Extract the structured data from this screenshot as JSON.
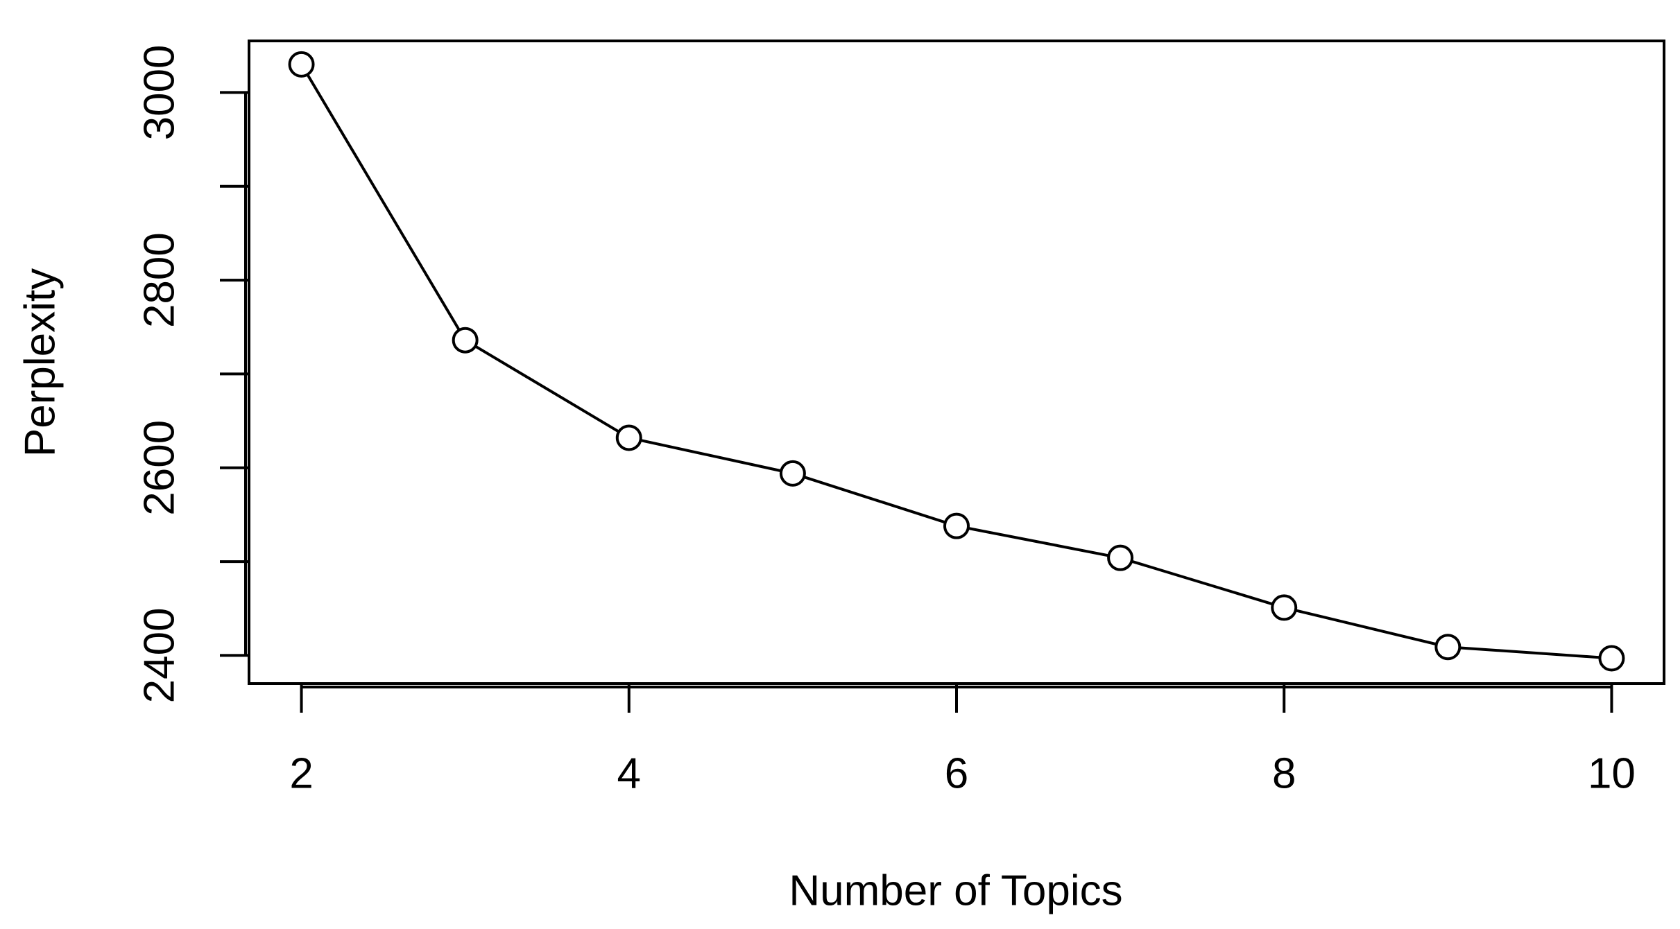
{
  "chart_data": {
    "type": "line",
    "x_label": "Number of Topics",
    "y_label": "Perplexity",
    "x": [
      2,
      3,
      4,
      5,
      6,
      7,
      8,
      9,
      10
    ],
    "values": [
      3030,
      2736,
      2632,
      2594,
      2538,
      2504,
      2451,
      2409,
      2397
    ],
    "color": "#000000",
    "xlim": [
      1.68,
      10.32
    ],
    "ylim": [
      2370,
      3055
    ],
    "xticks": [
      2,
      4,
      6,
      8,
      10
    ],
    "yticks": [
      2400,
      2600,
      2800,
      3000
    ],
    "yminor_ticks": [
      2500,
      2700,
      2900
    ],
    "markers": "open-circle",
    "grid": false
  }
}
